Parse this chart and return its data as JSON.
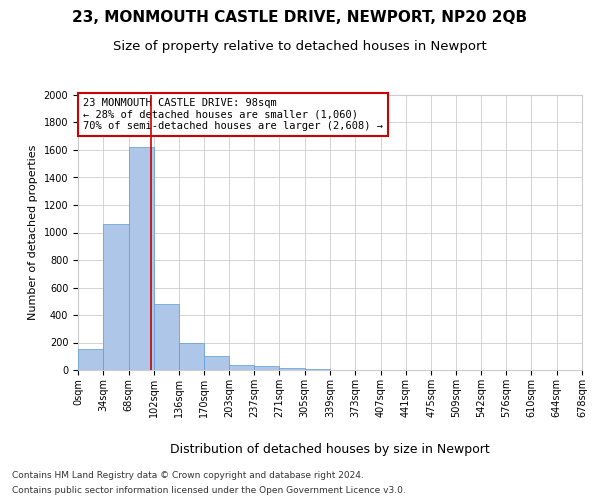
{
  "title1": "23, MONMOUTH CASTLE DRIVE, NEWPORT, NP20 2QB",
  "title2": "Size of property relative to detached houses in Newport",
  "xlabel": "Distribution of detached houses by size in Newport",
  "ylabel": "Number of detached properties",
  "footnote1": "Contains HM Land Registry data © Crown copyright and database right 2024.",
  "footnote2": "Contains public sector information licensed under the Open Government Licence v3.0.",
  "annotation_line1": "23 MONMOUTH CASTLE DRIVE: 98sqm",
  "annotation_line2": "← 28% of detached houses are smaller (1,060)",
  "annotation_line3": "70% of semi-detached houses are larger (2,608) →",
  "property_size": 98,
  "bar_edges": [
    0,
    34,
    68,
    102,
    136,
    170,
    203,
    237,
    271,
    305,
    339,
    373,
    407,
    441,
    475,
    509,
    542,
    576,
    610,
    644,
    678
  ],
  "bar_heights": [
    150,
    1060,
    1620,
    480,
    200,
    100,
    35,
    30,
    15,
    5,
    3,
    2,
    1,
    1,
    1,
    1,
    0,
    0,
    0,
    0
  ],
  "bar_color": "#aec6e8",
  "bar_edge_color": "#5b9bd5",
  "vline_color": "#cc0000",
  "vline_x": 98,
  "ylim": [
    0,
    2000
  ],
  "yticks": [
    0,
    200,
    400,
    600,
    800,
    1000,
    1200,
    1400,
    1600,
    1800,
    2000
  ],
  "bg_color": "#ffffff",
  "grid_color": "#cccccc",
  "annotation_box_color": "#cc0000",
  "title1_fontsize": 11,
  "title2_fontsize": 9.5,
  "xlabel_fontsize": 9,
  "ylabel_fontsize": 8,
  "tick_fontsize": 7,
  "annotation_fontsize": 7.5,
  "footnote_fontsize": 6.5
}
